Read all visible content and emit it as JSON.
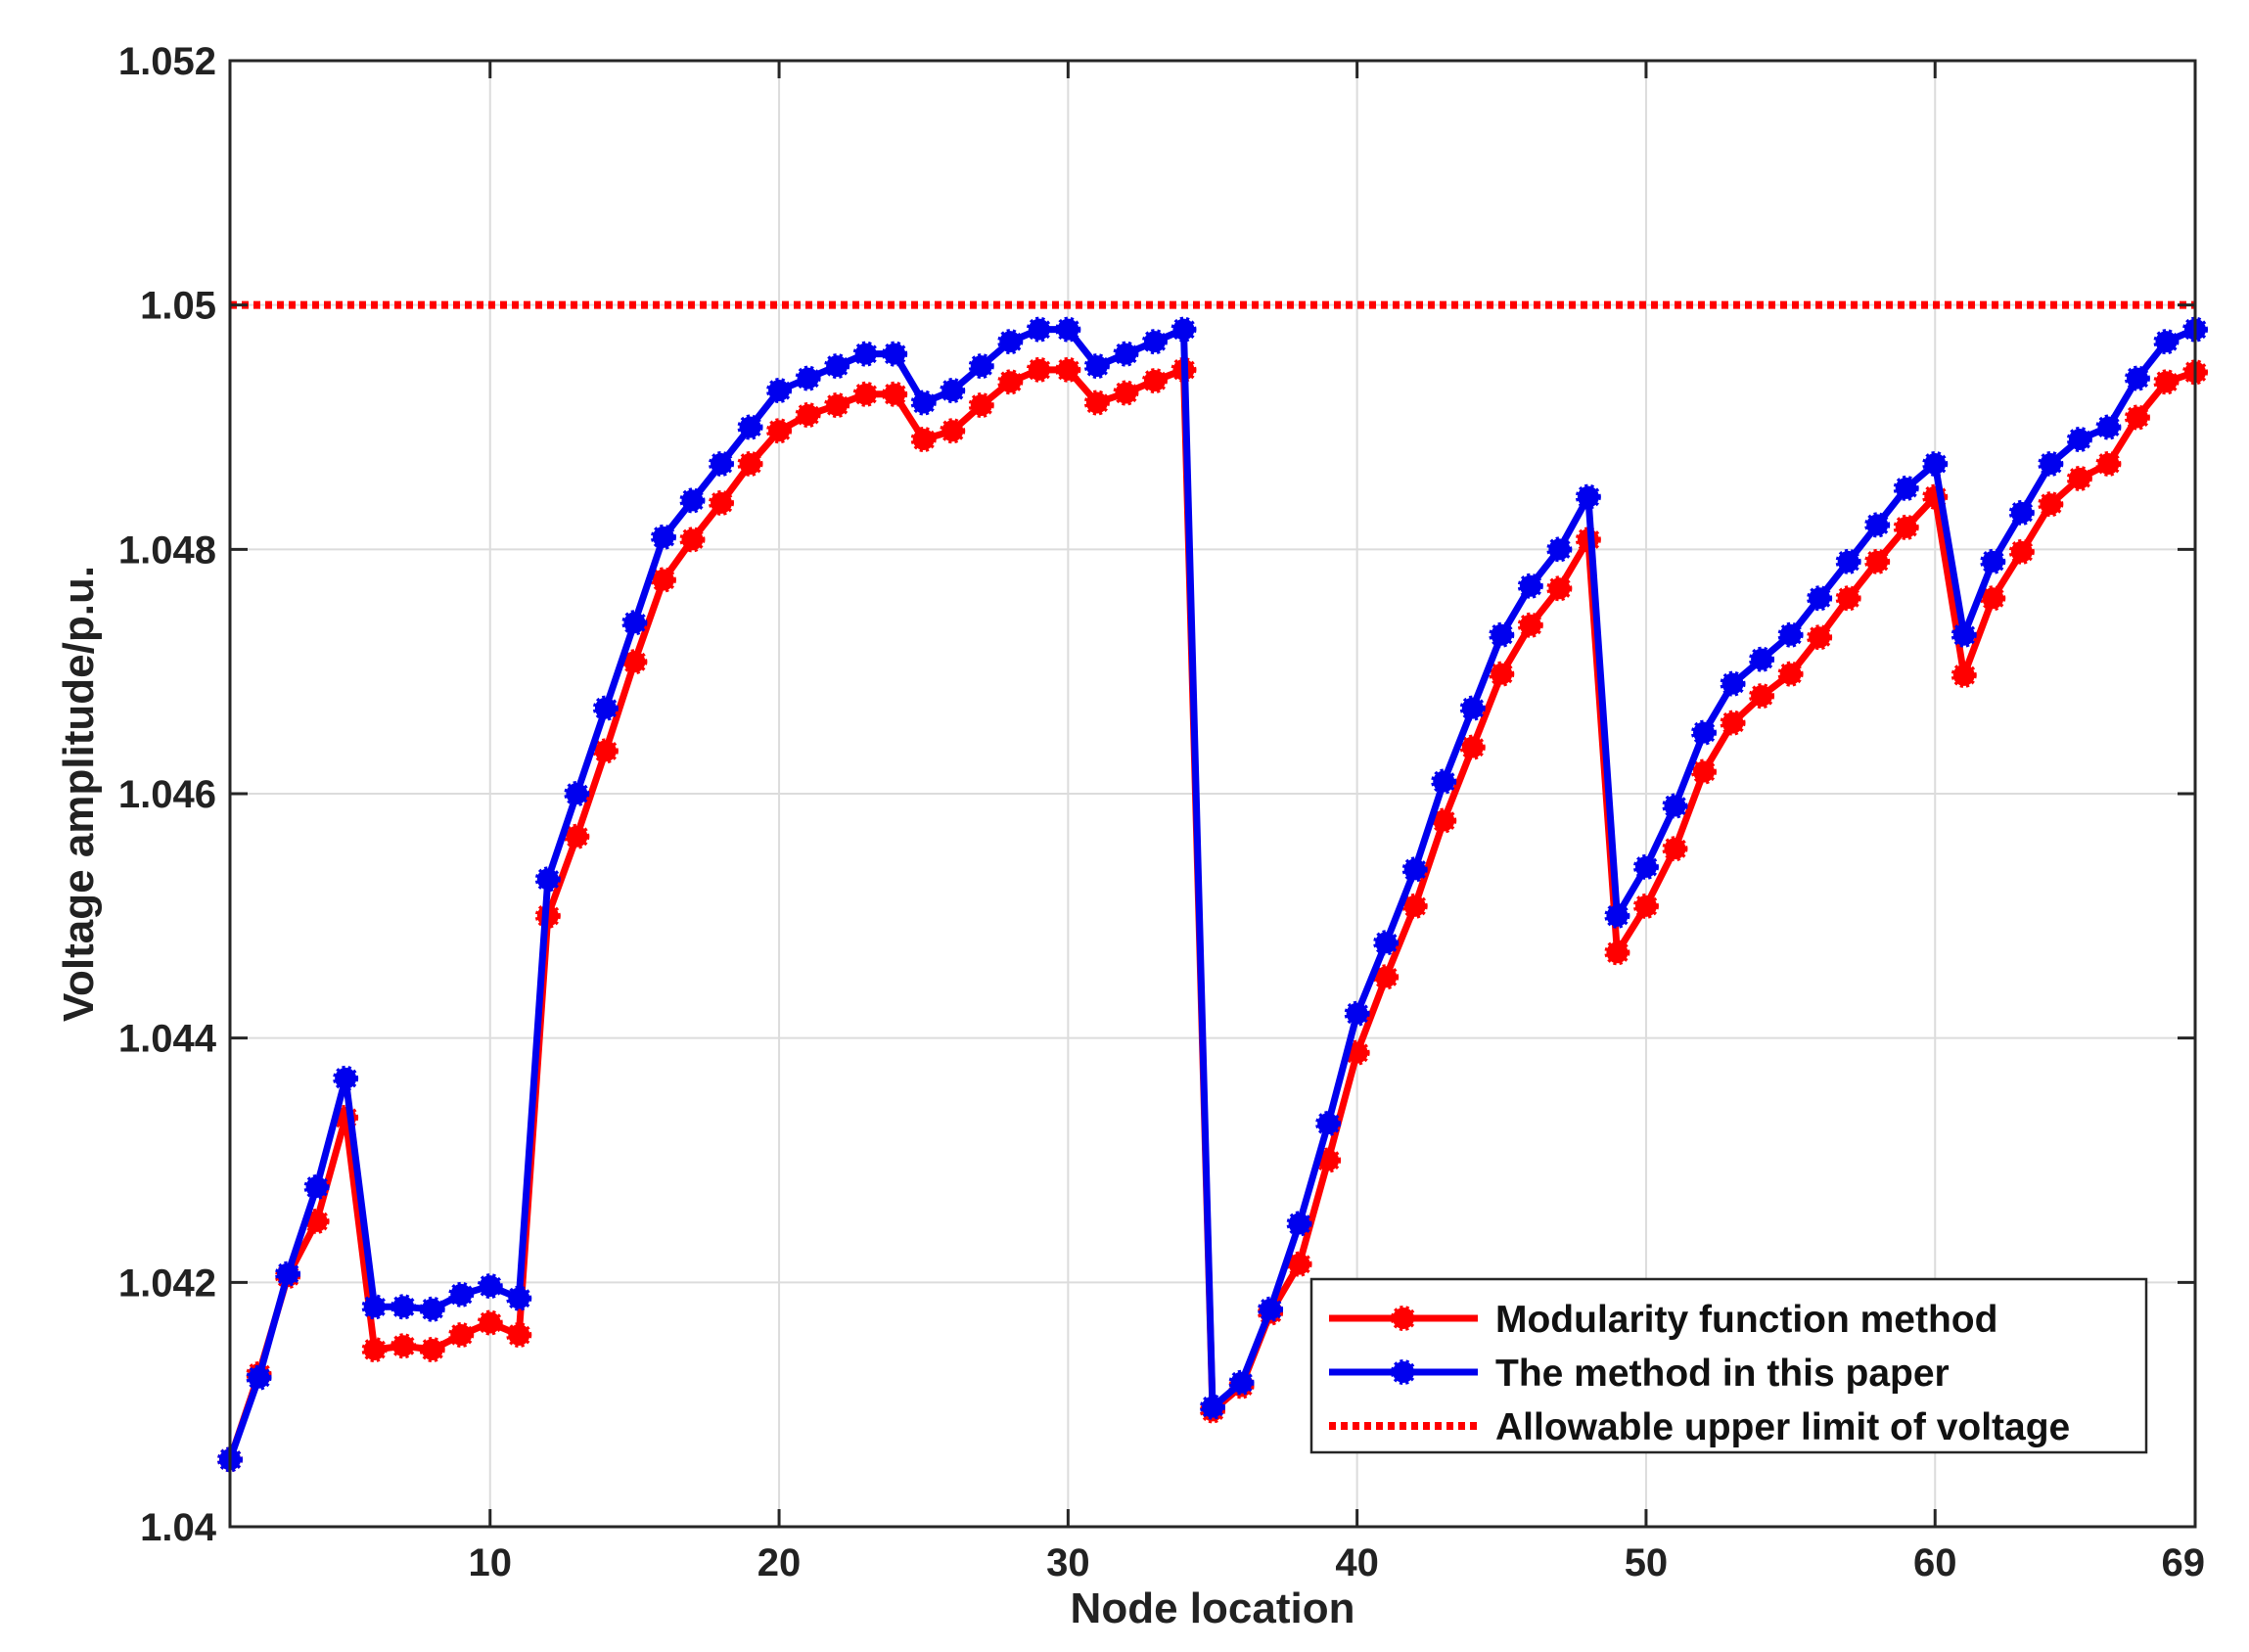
{
  "chart_data": {
    "type": "line",
    "xlabel": "Node location",
    "ylabel": "Voltage amplitude/p.u.",
    "xlim": [
      1,
      69
    ],
    "ylim": [
      1.04,
      1.052
    ],
    "x_ticks": [
      10,
      20,
      30,
      40,
      50,
      60,
      69
    ],
    "x_tick_labels": [
      "10",
      "20",
      "30",
      "40",
      "50",
      "60",
      "69"
    ],
    "y_ticks": [
      1.04,
      1.042,
      1.044,
      1.046,
      1.048,
      1.05,
      1.052
    ],
    "y_tick_labels": [
      "1.04",
      "1.042",
      "1.044",
      "1.046",
      "1.048",
      "1.05",
      "1.052"
    ],
    "grid": true,
    "legend_position": "bottom-right",
    "series": [
      {
        "name": "Modularity function method",
        "color": "#ff0000",
        "style": "solid-marker",
        "values": [
          1.04055,
          1.04125,
          1.04205,
          1.0425,
          1.04335,
          1.04145,
          1.04148,
          1.04145,
          1.04157,
          1.04167,
          1.04157,
          1.045,
          1.04565,
          1.04635,
          1.04708,
          1.04775,
          1.04808,
          1.04838,
          1.0487,
          1.04897,
          1.0491,
          1.04918,
          1.04927,
          1.04927,
          1.0489,
          1.04897,
          1.04918,
          1.04937,
          1.04947,
          1.04947,
          1.0492,
          1.04928,
          1.04938,
          1.04947,
          1.04095,
          1.04115,
          1.04175,
          1.04215,
          1.043,
          1.04388,
          1.0445,
          1.04508,
          1.04578,
          1.04638,
          1.04698,
          1.04738,
          1.04768,
          1.04808,
          1.0447,
          1.04508,
          1.04555,
          1.04618,
          1.04658,
          1.0468,
          1.04698,
          1.04728,
          1.0476,
          1.0479,
          1.04818,
          1.04843,
          1.04697,
          1.0476,
          1.04798,
          1.04837,
          1.04858,
          1.0487,
          1.04908,
          1.04937,
          1.04945
        ]
      },
      {
        "name": "The method in this paper",
        "color": "#0000ee",
        "style": "solid-marker",
        "values": [
          1.04055,
          1.04122,
          1.04207,
          1.04278,
          1.04367,
          1.0418,
          1.0418,
          1.04178,
          1.0419,
          1.04197,
          1.04187,
          1.0453,
          1.046,
          1.0467,
          1.0474,
          1.0481,
          1.0484,
          1.0487,
          1.049,
          1.0493,
          1.0494,
          1.0495,
          1.0496,
          1.0496,
          1.0492,
          1.0493,
          1.0495,
          1.0497,
          1.0498,
          1.0498,
          1.0495,
          1.0496,
          1.0497,
          1.0498,
          1.04098,
          1.04118,
          1.04178,
          1.04248,
          1.0433,
          1.0442,
          1.04478,
          1.04538,
          1.0461,
          1.0467,
          1.0473,
          1.0477,
          1.048,
          1.04843,
          1.045,
          1.0454,
          1.0459,
          1.0465,
          1.0469,
          1.0471,
          1.0473,
          1.0476,
          1.0479,
          1.0482,
          1.0485,
          1.0487,
          1.0473,
          1.0479,
          1.0483,
          1.0487,
          1.0489,
          1.049,
          1.0494,
          1.0497,
          1.0498
        ]
      },
      {
        "name": "Allowable upper limit of voltage",
        "color": "#ff0000",
        "style": "dotted",
        "constant": 1.05
      }
    ]
  }
}
